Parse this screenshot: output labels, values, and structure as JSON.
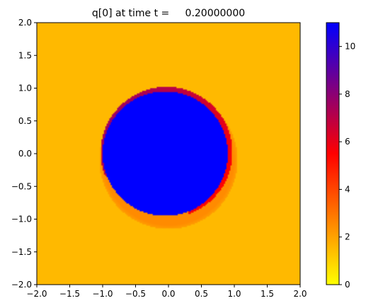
{
  "chart_data": {
    "type": "heatmap",
    "title": "q[0] at time t =     0.20000000",
    "xlim": [
      -2.0,
      2.0
    ],
    "ylim": [
      -2.0,
      2.0
    ],
    "x_ticks": [
      -2.0,
      -1.5,
      -1.0,
      -0.5,
      0.0,
      0.5,
      1.0,
      1.5,
      2.0
    ],
    "x_tick_labels": [
      "−2.0",
      "−1.5",
      "−1.0",
      "−0.5",
      "0.0",
      "0.5",
      "1.0",
      "1.5",
      "2.0"
    ],
    "y_ticks": [
      2.0,
      1.5,
      1.0,
      0.5,
      0.0,
      -0.5,
      -1.0,
      -1.5,
      -2.0
    ],
    "y_tick_labels": [
      "2.0",
      "1.5",
      "1.0",
      "0.5",
      "0.0",
      "−0.5",
      "−1.0",
      "−1.5",
      "−2.0"
    ],
    "colorbar": {
      "range": [
        0,
        11
      ],
      "ticks": [
        0,
        2,
        4,
        6,
        8,
        10
      ],
      "tick_labels": [
        "0",
        "2",
        "4",
        "6",
        "8",
        "10"
      ],
      "colormap": [
        "#ffff00",
        "#ff0000",
        "#0000ff"
      ]
    },
    "field": {
      "background_value": 1.5,
      "inner_disk": {
        "center": [
          -0.05,
          0.0
        ],
        "radius": 0.95,
        "value": 11
      },
      "front_shell": {
        "center": [
          0.0,
          -0.1
        ],
        "radius": 1.05,
        "value": 2.5
      },
      "rear_crescent_value": 7.5
    }
  }
}
